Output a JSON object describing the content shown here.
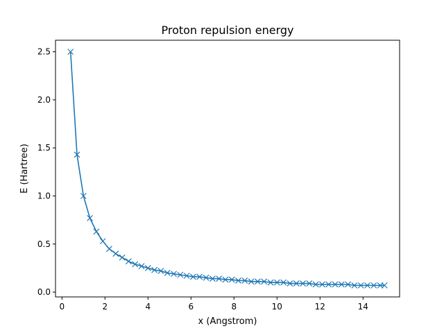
{
  "chart_data": {
    "type": "line",
    "title": "Proton repulsion energy",
    "xlabel": "x (Angstrom)",
    "ylabel": "E (Hartree)",
    "xlim": [
      -0.3,
      15.7
    ],
    "ylim": [
      -0.05,
      2.62
    ],
    "xticks": [
      0,
      2,
      4,
      6,
      8,
      10,
      12,
      14
    ],
    "xtick_labels": [
      "0",
      "2",
      "4",
      "6",
      "8",
      "10",
      "12",
      "14"
    ],
    "yticks": [
      0.0,
      0.5,
      1.0,
      1.5,
      2.0,
      2.5
    ],
    "ytick_labels": [
      "0.0",
      "0.5",
      "1.0",
      "1.5",
      "2.0",
      "2.5"
    ],
    "grid": false,
    "marker": "x",
    "series_color": "#1f77b4",
    "series": [
      {
        "x": [
          0.4,
          0.7,
          1.0,
          1.3,
          1.6,
          1.9,
          2.2,
          2.5,
          2.8,
          3.1,
          3.4,
          3.7,
          4.0,
          4.3,
          4.6,
          4.9,
          5.2,
          5.5,
          5.8,
          6.1,
          6.4,
          6.7,
          7.0,
          7.3,
          7.6,
          7.9,
          8.2,
          8.5,
          8.8,
          9.1,
          9.4,
          9.7,
          10.0,
          10.3,
          10.6,
          10.9,
          11.2,
          11.5,
          11.8,
          12.1,
          12.4,
          12.7,
          13.0,
          13.3,
          13.6,
          13.9,
          14.2,
          14.5,
          14.8,
          15.0
        ],
        "values": [
          2.5,
          1.43,
          1.0,
          0.77,
          0.63,
          0.53,
          0.45,
          0.4,
          0.36,
          0.32,
          0.29,
          0.27,
          0.25,
          0.23,
          0.22,
          0.2,
          0.19,
          0.18,
          0.17,
          0.16,
          0.16,
          0.15,
          0.14,
          0.14,
          0.13,
          0.13,
          0.12,
          0.12,
          0.11,
          0.11,
          0.11,
          0.1,
          0.1,
          0.1,
          0.09,
          0.09,
          0.09,
          0.09,
          0.08,
          0.08,
          0.08,
          0.08,
          0.08,
          0.08,
          0.07,
          0.07,
          0.07,
          0.07,
          0.07,
          0.07
        ]
      }
    ]
  }
}
